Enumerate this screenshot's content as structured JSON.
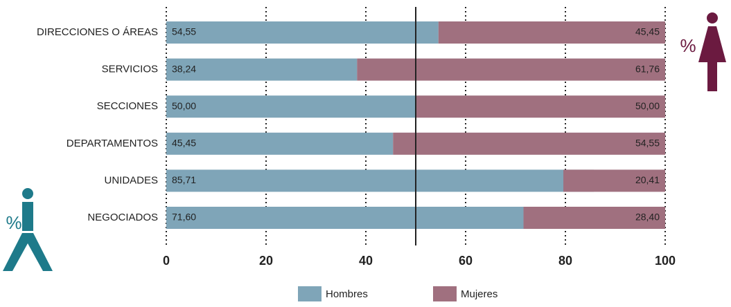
{
  "chart_data": {
    "type": "stacked-bar-horizontal",
    "categories": [
      "DIRECCIONES O ÁREAS",
      "SERVICIOS",
      "SECCIONES",
      "DEPARTAMENTOS",
      "UNIDADES",
      "NEGOCIADOS"
    ],
    "series": [
      {
        "name": "Hombres",
        "color": "#7fa5b8",
        "values": [
          54.55,
          38.24,
          50.0,
          45.45,
          85.71,
          71.6
        ],
        "value_labels": [
          "54,55",
          "38,24",
          "50,00",
          "45,45",
          "85,71",
          "71,60"
        ]
      },
      {
        "name": "Mujeres",
        "color": "#a0707f",
        "values": [
          45.45,
          61.76,
          50.0,
          54.55,
          20.41,
          28.4
        ],
        "value_labels": [
          "45,45",
          "61,76",
          "50,00",
          "54,55",
          "20,41",
          "28,40"
        ]
      }
    ],
    "xlim": [
      0,
      100
    ],
    "xticks": [
      0,
      20,
      40,
      60,
      80,
      100
    ],
    "grid": true,
    "reference_line": 50,
    "annotations": [
      "%",
      "%"
    ]
  }
}
